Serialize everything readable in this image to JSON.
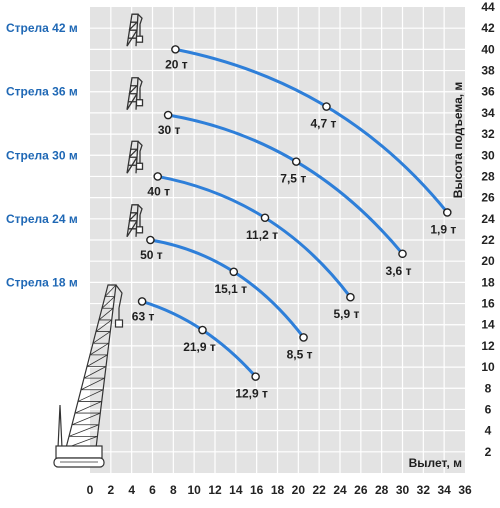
{
  "colors": {
    "plot_bg": "#e3e3e3",
    "grid": "#ffffff",
    "curve": "#2e7fd9",
    "boom_label": "#1f68b5",
    "text": "#1f1f1f",
    "icon": "#333333"
  },
  "chart_data": {
    "type": "line",
    "xlabel": "Вылет, м",
    "ylabel": "Высота подъема, м",
    "xlim": [
      0,
      36
    ],
    "ylim": [
      0,
      44
    ],
    "x_ticks": [
      "0",
      "2",
      "4",
      "6",
      "8",
      "10",
      "12",
      "14",
      "16",
      "18",
      "20",
      "22",
      "24",
      "26",
      "28",
      "30",
      "32",
      "34",
      "36"
    ],
    "y_ticks": [
      "2",
      "4",
      "6",
      "8",
      "10",
      "12",
      "14",
      "16",
      "18",
      "20",
      "22",
      "24",
      "26",
      "28",
      "30",
      "32",
      "34",
      "36",
      "38",
      "40",
      "42",
      "44"
    ],
    "grid": true,
    "series": [
      {
        "name": "Стрела 42 м",
        "boom_y": 42,
        "points": [
          {
            "x": 8.2,
            "y": 40.0,
            "label": "20 т"
          },
          {
            "x": 22.7,
            "y": 34.6,
            "label": "4,7 т"
          },
          {
            "x": 34.3,
            "y": 24.6,
            "label": "1,9 т"
          }
        ]
      },
      {
        "name": "Стрела 36 м",
        "boom_y": 36,
        "points": [
          {
            "x": 7.5,
            "y": 33.8,
            "label": "30 т"
          },
          {
            "x": 19.8,
            "y": 29.4,
            "label": "7,5 т"
          },
          {
            "x": 30.0,
            "y": 20.7,
            "label": "3,6 т"
          }
        ]
      },
      {
        "name": "Стрела 30 м",
        "boom_y": 30,
        "points": [
          {
            "x": 6.5,
            "y": 28.0,
            "label": "40 т"
          },
          {
            "x": 16.8,
            "y": 24.1,
            "label": "11,2 т"
          },
          {
            "x": 25.0,
            "y": 16.6,
            "label": "5,9 т"
          }
        ]
      },
      {
        "name": "Стрела 24 м",
        "boom_y": 24,
        "points": [
          {
            "x": 5.8,
            "y": 22.0,
            "label": "50 т"
          },
          {
            "x": 13.8,
            "y": 19.0,
            "label": "15,1 т"
          },
          {
            "x": 20.5,
            "y": 12.8,
            "label": "8,5 т"
          }
        ]
      },
      {
        "name": "Стрела 18 м",
        "boom_y": 18,
        "points": [
          {
            "x": 5.0,
            "y": 16.2,
            "label": "63 т"
          },
          {
            "x": 10.8,
            "y": 13.5,
            "label": "21,9 т"
          },
          {
            "x": 15.9,
            "y": 9.1,
            "label": "12,9 т"
          }
        ]
      }
    ]
  }
}
